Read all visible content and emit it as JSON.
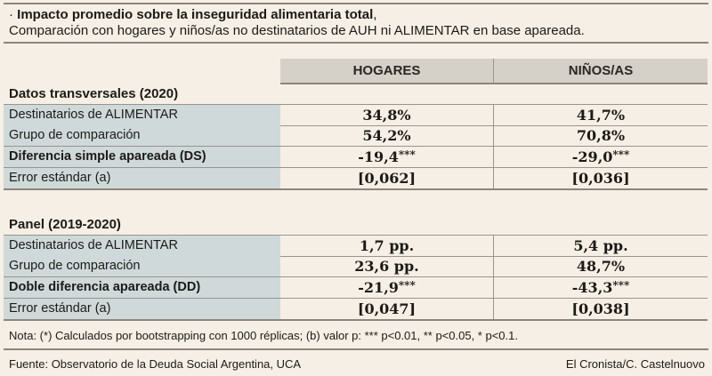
{
  "title": {
    "bold": "Impacto promedio sobre la inseguridad alimentaria total",
    "rest": ",",
    "subtitle": "Comparación con hogares y niños/as no destinatarios de AUH ni ALIMENTAR en base apareada."
  },
  "columns": [
    "HOGARES",
    "NIÑOS/AS"
  ],
  "sections": [
    {
      "title": "Datos transversales (2020)",
      "rows": [
        {
          "label": "Destinatarios de ALIMENTAR",
          "bold": false,
          "values": [
            "34,8%",
            "41,7%"
          ],
          "stars": [
            "",
            ""
          ]
        },
        {
          "label": "Grupo de comparación",
          "bold": false,
          "values": [
            "54,2%",
            "70,8%"
          ],
          "stars": [
            "",
            ""
          ]
        },
        {
          "label": "Diferencia simple apareada (DS)",
          "bold": true,
          "values": [
            "-19,4",
            "-29,0"
          ],
          "stars": [
            "***",
            "***"
          ]
        },
        {
          "label": "Error estándar (a)",
          "bold": false,
          "values": [
            "[0,062]",
            "[0,036]"
          ],
          "stars": [
            "",
            ""
          ]
        }
      ]
    },
    {
      "title": "Panel (2019-2020)",
      "rows": [
        {
          "label": "Destinatarios de ALIMENTAR",
          "bold": false,
          "values": [
            "1,7 pp.",
            "5,4 pp."
          ],
          "stars": [
            "",
            ""
          ]
        },
        {
          "label": "Grupo de comparación",
          "bold": false,
          "values": [
            "23,6 pp.",
            "48,7%"
          ],
          "stars": [
            "",
            ""
          ]
        },
        {
          "label": "Doble diferencia apareada (DD)",
          "bold": true,
          "values": [
            "-21,9",
            "-43,3"
          ],
          "stars": [
            "***",
            "***"
          ]
        },
        {
          "label": "Error estándar (a)",
          "bold": false,
          "values": [
            "[0,047]",
            "[0,038]"
          ],
          "stars": [
            "",
            ""
          ]
        }
      ]
    }
  ],
  "note": "Nota: (*) Calculados por bootstrapping con 1000 réplicas; (b) valor p: *** p<0.01, ** p<0.05, * p<0.1.",
  "source": "Fuente: Observatorio de la Deuda Social Argentina, UCA",
  "credit": "El Cronista/C. Castelnuovo"
}
